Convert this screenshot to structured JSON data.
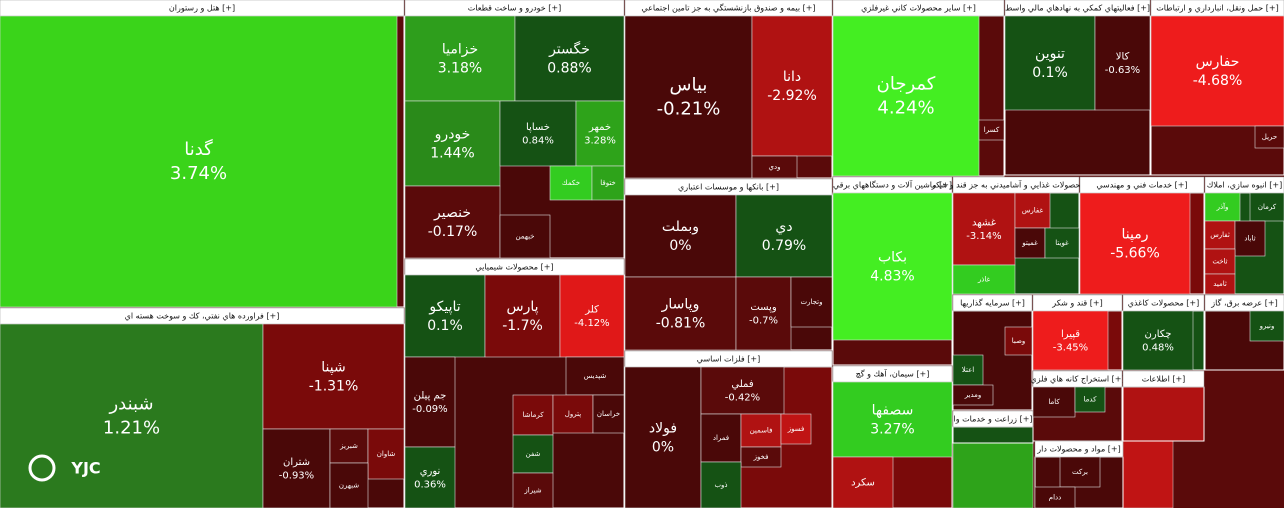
{
  "watermark": "YJC",
  "sectors": [
    {
      "title": "هتل و رستوران [+]",
      "tiles": [
        {
          "name": "گدنا",
          "change": "3.74%"
        }
      ]
    },
    {
      "title": "فراورده هاي نفتي، كك و سوخت هسته اي [+]",
      "tiles": [
        {
          "name": "شبندر",
          "change": "1.21%"
        },
        {
          "name": "شپنا",
          "change": "-1.31%"
        },
        {
          "name": "شتران",
          "change": "-0.93%"
        },
        {
          "name": "شبريز"
        },
        {
          "name": "شاوان"
        },
        {
          "name": "شبهرن"
        }
      ]
    },
    {
      "title": "خودرو و ساخت قطعات [+]",
      "tiles": [
        {
          "name": "خزاميا",
          "change": "3.18%"
        },
        {
          "name": "خگستر",
          "change": "0.88%"
        },
        {
          "name": "خودرو",
          "change": "1.44%"
        },
        {
          "name": "خساپا",
          "change": "0.84%"
        },
        {
          "name": "خمهر",
          "change": "3.28%"
        },
        {
          "name": "خنصير",
          "change": "-0.17%"
        },
        {
          "name": "خكمك"
        },
        {
          "name": "ختوقا"
        },
        {
          "name": "خبهمن"
        }
      ]
    },
    {
      "title": "محصولات شيميايي [+]",
      "tiles": [
        {
          "name": "تاپيكو",
          "change": "0.1%"
        },
        {
          "name": "پارس",
          "change": "-1.7%"
        },
        {
          "name": "كلر",
          "change": "-4.12%"
        },
        {
          "name": "جم پيلن",
          "change": "-0.09%"
        },
        {
          "name": "شپديس"
        },
        {
          "name": "كرماشا"
        },
        {
          "name": "پترول"
        },
        {
          "name": "خراسان"
        },
        {
          "name": "شفن"
        },
        {
          "name": "شيراز"
        },
        {
          "name": "نوري",
          "change": "0.36%"
        }
      ]
    },
    {
      "title": "بيمه و صندوق بازنشستگي به جز تامين اجتماعي [+]",
      "tiles": [
        {
          "name": "بياس",
          "change": "-0.21%"
        },
        {
          "name": "دانا",
          "change": "-2.92%"
        },
        {
          "name": "ودي"
        }
      ]
    },
    {
      "title": "بانكها و موسسات اعتباري [+]",
      "tiles": [
        {
          "name": "وبملت",
          "change": "0%"
        },
        {
          "name": "دي",
          "change": "0.79%"
        },
        {
          "name": "وپاسار",
          "change": "-0.81%"
        },
        {
          "name": "وپست",
          "change": "-0.7%"
        },
        {
          "name": "وتجارت"
        }
      ]
    },
    {
      "title": "فلزات اساسي [+]",
      "tiles": [
        {
          "name": "فولاد",
          "change": "0%"
        },
        {
          "name": "فملي",
          "change": "-0.42%"
        },
        {
          "name": "فمراد"
        },
        {
          "name": "فاسمين"
        },
        {
          "name": "فخوز"
        },
        {
          "name": "ذوب"
        },
        {
          "name": "فسوز"
        }
      ]
    },
    {
      "title": "ساير محصولات كاني غيرفلزي [+]",
      "tiles": [
        {
          "name": "كمرجان",
          "change": "4.24%"
        },
        {
          "name": "كسرا"
        }
      ]
    },
    {
      "title": "ماشين آلات و دستگاههاي برقي [+]",
      "tiles": [
        {
          "name": "بكاب",
          "change": "4.83%"
        }
      ]
    },
    {
      "title": "سيمان، آهك و گچ [+]",
      "tiles": [
        {
          "name": "سصفها",
          "change": "3.27%"
        },
        {
          "name": "سكرد"
        }
      ]
    },
    {
      "title": "فعاليتهاي كمكي به نهادهاي مالي واسط [+]",
      "tiles": [
        {
          "name": "تنوين",
          "change": "0.1%"
        },
        {
          "name": "كالا",
          "change": "-0.63%"
        }
      ]
    },
    {
      "title": "حمل ونقل، انبارداري و ارتباطات [+]",
      "tiles": [
        {
          "name": "حفارس",
          "change": "-4.68%"
        },
        {
          "name": "حريل"
        }
      ]
    },
    {
      "title": "محصولات غذايي و آشاميدني به جز قند و شكر [+]",
      "tiles": [
        {
          "name": "غشهد",
          "change": "-3.14%"
        },
        {
          "name": "غفارس"
        },
        {
          "name": "غميتو"
        },
        {
          "name": "غويتا"
        },
        {
          "name": "غاذر"
        }
      ]
    },
    {
      "title": "خدمات فني و مهندسي [+]",
      "tiles": [
        {
          "name": "رمپنا",
          "change": "-5.66%"
        }
      ]
    },
    {
      "title": "انبوه سازي، املاك [+]",
      "tiles": [
        {
          "name": "وآذر"
        },
        {
          "name": "كرمان"
        },
        {
          "name": "ثفارس"
        },
        {
          "name": "ثاباد"
        },
        {
          "name": "ثاخت"
        },
        {
          "name": "ثاميد"
        }
      ]
    },
    {
      "title": "سرمايه گذاريها [+]",
      "tiles": [
        {
          "name": "وصبا"
        },
        {
          "name": "اعتلا"
        },
        {
          "name": "ومدير"
        }
      ]
    },
    {
      "title": "قند و شكر [+]",
      "tiles": [
        {
          "name": "قپيرا",
          "change": "-3.45%"
        }
      ]
    },
    {
      "title": "محصولات كاغذي [+]",
      "tiles": [
        {
          "name": "چكارن",
          "change": "0.48%"
        }
      ]
    },
    {
      "title": "عرضه برق، گاز [+]",
      "tiles": [
        {
          "name": "ونيرو"
        }
      ]
    },
    {
      "title": "استخراج كانه هاي فلزي [+]",
      "tiles": [
        {
          "name": "كاما"
        },
        {
          "name": "كدما"
        }
      ]
    },
    {
      "title": "زراعت و خدمات وا [+]",
      "tiles": []
    },
    {
      "title": "مواد و محصولات دار [+]",
      "tiles": [
        {
          "name": "بركت"
        },
        {
          "name": "ددام"
        }
      ]
    },
    {
      "title": "اطلاعات [+]",
      "tiles": []
    }
  ]
}
